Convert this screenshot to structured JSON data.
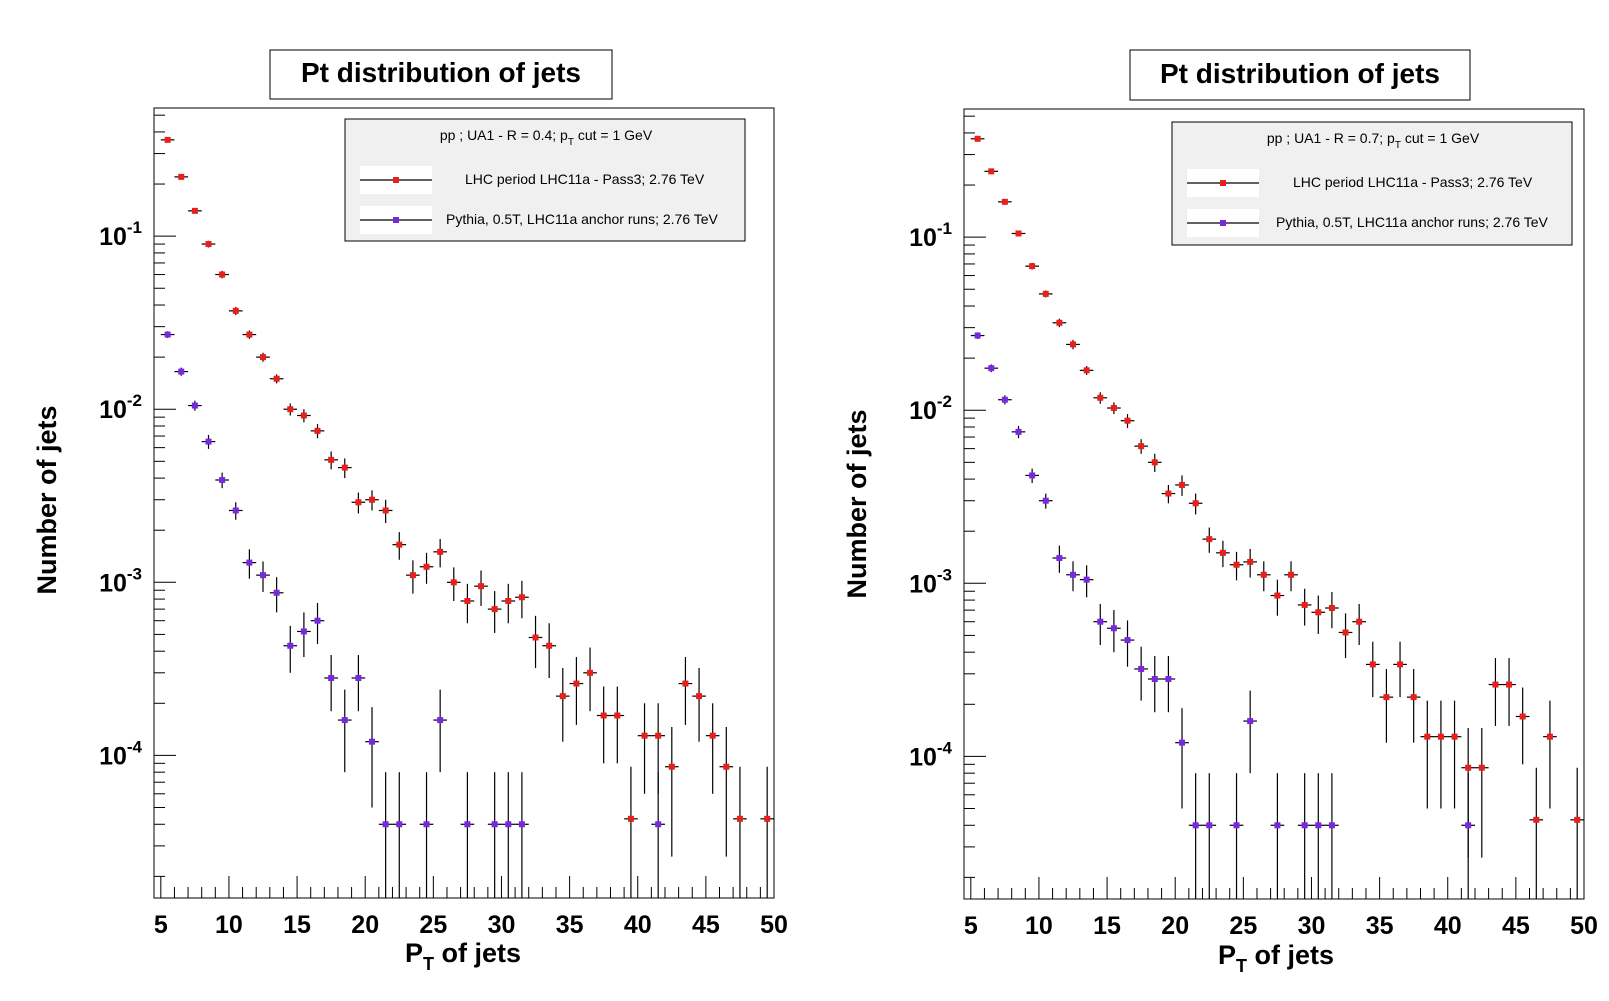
{
  "chart_data": [
    {
      "type": "scatter",
      "title": "Pt distribution of jets",
      "xlabel_main": "P",
      "xlabel_sub": "T",
      "xlabel_rest": " of jets",
      "ylabel": "Number of jets",
      "xlim": [
        4.5,
        50
      ],
      "ylim": [
        1.5e-05,
        0.55
      ],
      "yscale": "log",
      "x_ticks": [
        5,
        10,
        15,
        20,
        25,
        30,
        35,
        40,
        45,
        50
      ],
      "y_ticks": [
        {
          "value": 0.1,
          "base": "10",
          "exp": "-1"
        },
        {
          "value": 0.01,
          "base": "10",
          "exp": "-2"
        },
        {
          "value": 0.001,
          "base": "10",
          "exp": "-3"
        },
        {
          "value": 0.0001,
          "base": "10",
          "exp": "-4"
        }
      ],
      "legend": {
        "header_pre": "pp ; UA1 - R = 0.4; p",
        "header_sub": "T",
        "header_post": " cut = 1 GeV",
        "placement": "top-right"
      },
      "series": [
        {
          "name": "LHC period LHC11a - Pass3; 2.76 TeV",
          "color": "#e8201a",
          "x": [
            5.5,
            6.5,
            7.5,
            8.5,
            9.5,
            10.5,
            11.5,
            12.5,
            13.5,
            14.5,
            15.5,
            16.5,
            17.5,
            18.5,
            19.5,
            20.5,
            21.5,
            22.5,
            23.5,
            24.5,
            25.5,
            26.5,
            27.5,
            28.5,
            29.5,
            30.5,
            31.5,
            32.5,
            33.5,
            34.5,
            35.5,
            36.5,
            37.5,
            38.5,
            39.5,
            40.5,
            41.5,
            42.5,
            43.5,
            44.5,
            45.5,
            46.5,
            47.5,
            49.5
          ],
          "y": [
            0.36,
            0.22,
            0.14,
            0.09,
            0.06,
            0.037,
            0.027,
            0.02,
            0.015,
            0.01,
            0.0092,
            0.0075,
            0.0051,
            0.0046,
            0.0029,
            0.003,
            0.0026,
            0.00165,
            0.0011,
            0.00123,
            0.0015,
            0.001,
            0.00078,
            0.00095,
            0.0007,
            0.00078,
            0.00082,
            0.00048,
            0.00043,
            0.00022,
            0.00026,
            0.0003,
            0.00017,
            0.00017,
            4.3e-05,
            0.00013,
            0.00013,
            8.6e-05,
            0.00026,
            0.00022,
            0.00013,
            8.6e-05,
            4.3e-05,
            4.3e-05
          ],
          "err_lo": [
            0.012,
            0.007,
            0.005,
            0.004,
            0.003,
            0.002,
            0.0015,
            0.0012,
            0.0009,
            0.0008,
            0.0008,
            0.0007,
            0.0006,
            0.0006,
            0.0004,
            0.0004,
            0.0004,
            0.0003,
            0.00024,
            0.00025,
            0.00028,
            0.00022,
            0.0002,
            0.00022,
            0.00019,
            0.0002,
            0.0002,
            0.00016,
            0.00015,
            0.0001,
            0.00011,
            0.00012,
            8e-05,
            8e-05,
            3.6e-05,
            7e-05,
            7e-05,
            6e-05,
            0.00011,
            0.0001,
            7e-05,
            6e-05,
            3.6e-05,
            3.6e-05
          ],
          "err_hi": [
            0.012,
            0.007,
            0.005,
            0.004,
            0.003,
            0.002,
            0.0015,
            0.0012,
            0.0009,
            0.0008,
            0.0008,
            0.0007,
            0.0006,
            0.0006,
            0.0004,
            0.0004,
            0.0004,
            0.0003,
            0.00024,
            0.00025,
            0.00028,
            0.00022,
            0.0002,
            0.00022,
            0.00019,
            0.0002,
            0.0002,
            0.00016,
            0.00015,
            0.0001,
            0.00011,
            0.00012,
            8e-05,
            8e-05,
            4.3e-05,
            7e-05,
            7e-05,
            6e-05,
            0.00011,
            0.0001,
            7e-05,
            6e-05,
            4.3e-05,
            4.3e-05
          ]
        },
        {
          "name": "Pythia, 0.5T, LHC11a anchor runs; 2.76 TeV",
          "color": "#7a28e0",
          "x": [
            5.5,
            6.5,
            7.5,
            8.5,
            9.5,
            10.5,
            11.5,
            12.5,
            13.5,
            14.5,
            15.5,
            16.5,
            17.5,
            18.5,
            19.5,
            20.5,
            21.5,
            22.5,
            24.5,
            25.5,
            27.5,
            29.5,
            30.5,
            31.5,
            41.5
          ],
          "y": [
            0.027,
            0.0165,
            0.0105,
            0.0065,
            0.0039,
            0.0026,
            0.0013,
            0.0011,
            0.00087,
            0.00043,
            0.00052,
            0.0006,
            0.00028,
            0.00016,
            0.00028,
            0.00012,
            4e-05,
            4e-05,
            4e-05,
            0.00016,
            4e-05,
            4e-05,
            4e-05,
            4e-05,
            4e-05
          ],
          "err_lo": [
            0.0012,
            0.0009,
            0.0007,
            0.0006,
            0.0004,
            0.0003,
            0.00025,
            0.00022,
            0.0002,
            0.00013,
            0.00015,
            0.00016,
            0.0001,
            8e-05,
            0.0001,
            7e-05,
            3e-05,
            3e-05,
            3e-05,
            8e-05,
            3e-05,
            3e-05,
            3e-05,
            3e-05,
            3e-05
          ],
          "err_hi": [
            0.0012,
            0.0009,
            0.0007,
            0.0006,
            0.0004,
            0.0003,
            0.00025,
            0.00022,
            0.0002,
            0.00013,
            0.00015,
            0.00016,
            0.0001,
            8e-05,
            0.0001,
            7e-05,
            4e-05,
            4e-05,
            4e-05,
            8e-05,
            4e-05,
            4e-05,
            4e-05,
            4e-05,
            4e-05
          ]
        }
      ]
    },
    {
      "type": "scatter",
      "title": "Pt distribution of jets",
      "xlabel_main": "P",
      "xlabel_sub": "T",
      "xlabel_rest": " of jets",
      "ylabel": "Number of jets",
      "xlim": [
        4.5,
        50
      ],
      "ylim": [
        1.5e-05,
        0.55
      ],
      "yscale": "log",
      "x_ticks": [
        5,
        10,
        15,
        20,
        25,
        30,
        35,
        40,
        45,
        50
      ],
      "y_ticks": [
        {
          "value": 0.1,
          "base": "10",
          "exp": "-1"
        },
        {
          "value": 0.01,
          "base": "10",
          "exp": "-2"
        },
        {
          "value": 0.001,
          "base": "10",
          "exp": "-3"
        },
        {
          "value": 0.0001,
          "base": "10",
          "exp": "-4"
        }
      ],
      "legend": {
        "header_pre": "pp ; UA1 - R = 0.7; p",
        "header_sub": "T",
        "header_post": " cut = 1 GeV",
        "placement": "top-right"
      },
      "series": [
        {
          "name": "LHC period LHC11a - Pass3; 2.76 TeV",
          "color": "#e8201a",
          "x": [
            5.5,
            6.5,
            7.5,
            8.5,
            9.5,
            10.5,
            11.5,
            12.5,
            13.5,
            14.5,
            15.5,
            16.5,
            17.5,
            18.5,
            19.5,
            20.5,
            21.5,
            22.5,
            23.5,
            24.5,
            25.5,
            26.5,
            27.5,
            28.5,
            29.5,
            30.5,
            31.5,
            32.5,
            33.5,
            34.5,
            35.5,
            36.5,
            37.5,
            38.5,
            39.5,
            40.5,
            41.5,
            42.5,
            43.5,
            44.5,
            45.5,
            46.5,
            47.5,
            49.5
          ],
          "y": [
            0.37,
            0.24,
            0.16,
            0.105,
            0.068,
            0.047,
            0.032,
            0.024,
            0.017,
            0.0118,
            0.0103,
            0.0087,
            0.0062,
            0.005,
            0.0033,
            0.0037,
            0.0029,
            0.0018,
            0.0015,
            0.00128,
            0.00133,
            0.00112,
            0.00085,
            0.00112,
            0.00075,
            0.00068,
            0.00072,
            0.00052,
            0.0006,
            0.00034,
            0.00022,
            0.00034,
            0.00022,
            0.00013,
            0.00013,
            0.00013,
            8.6e-05,
            8.6e-05,
            0.00026,
            0.00026,
            0.00017,
            4.3e-05,
            0.00013,
            4.3e-05
          ],
          "err_lo": [
            0.012,
            0.008,
            0.006,
            0.004,
            0.003,
            0.0022,
            0.0018,
            0.0015,
            0.001,
            0.0009,
            0.0008,
            0.0008,
            0.0006,
            0.0006,
            0.0004,
            0.0005,
            0.0004,
            0.0003,
            0.00026,
            0.00024,
            0.00025,
            0.00022,
            0.0002,
            0.00022,
            0.00018,
            0.00017,
            0.00017,
            0.00015,
            0.00016,
            0.00012,
            0.0001,
            0.00012,
            0.0001,
            8e-05,
            8e-05,
            8e-05,
            6e-05,
            6e-05,
            0.00011,
            0.00011,
            8e-05,
            3.6e-05,
            8e-05,
            3.6e-05
          ],
          "err_hi": [
            0.012,
            0.008,
            0.006,
            0.004,
            0.003,
            0.0022,
            0.0018,
            0.0015,
            0.001,
            0.0009,
            0.0008,
            0.0008,
            0.0006,
            0.0006,
            0.0004,
            0.0005,
            0.0004,
            0.0003,
            0.00026,
            0.00024,
            0.00025,
            0.00022,
            0.0002,
            0.00022,
            0.00018,
            0.00017,
            0.00017,
            0.00015,
            0.00016,
            0.00012,
            0.0001,
            0.00012,
            0.0001,
            8e-05,
            8e-05,
            8e-05,
            6e-05,
            6e-05,
            0.00011,
            0.00011,
            8e-05,
            4.3e-05,
            8e-05,
            4.3e-05
          ]
        },
        {
          "name": "Pythia, 0.5T, LHC11a anchor runs; 2.76 TeV",
          "color": "#7a28e0",
          "x": [
            5.5,
            6.5,
            7.5,
            8.5,
            9.5,
            10.5,
            11.5,
            12.5,
            13.5,
            14.5,
            15.5,
            16.5,
            17.5,
            18.5,
            19.5,
            20.5,
            21.5,
            22.5,
            24.5,
            25.5,
            27.5,
            29.5,
            30.5,
            31.5,
            41.5
          ],
          "y": [
            0.027,
            0.0175,
            0.0115,
            0.0075,
            0.0042,
            0.003,
            0.0014,
            0.00112,
            0.00105,
            0.0006,
            0.00055,
            0.00047,
            0.00032,
            0.00028,
            0.00028,
            0.00012,
            4e-05,
            4e-05,
            4e-05,
            0.00016,
            4e-05,
            4e-05,
            4e-05,
            4e-05,
            4e-05
          ],
          "err_lo": [
            0.0012,
            0.0009,
            0.0007,
            0.0006,
            0.0004,
            0.0003,
            0.00025,
            0.00022,
            0.00022,
            0.00016,
            0.00015,
            0.00014,
            0.00011,
            0.0001,
            0.0001,
            7e-05,
            3e-05,
            3e-05,
            3e-05,
            8e-05,
            3e-05,
            3e-05,
            3e-05,
            3e-05,
            3e-05
          ],
          "err_hi": [
            0.0012,
            0.0009,
            0.0007,
            0.0006,
            0.0004,
            0.0003,
            0.00025,
            0.00022,
            0.00022,
            0.00016,
            0.00015,
            0.00014,
            0.00011,
            0.0001,
            0.0001,
            7e-05,
            4e-05,
            4e-05,
            4e-05,
            8e-05,
            4e-05,
            4e-05,
            4e-05,
            4e-05,
            4e-05
          ]
        }
      ]
    }
  ]
}
